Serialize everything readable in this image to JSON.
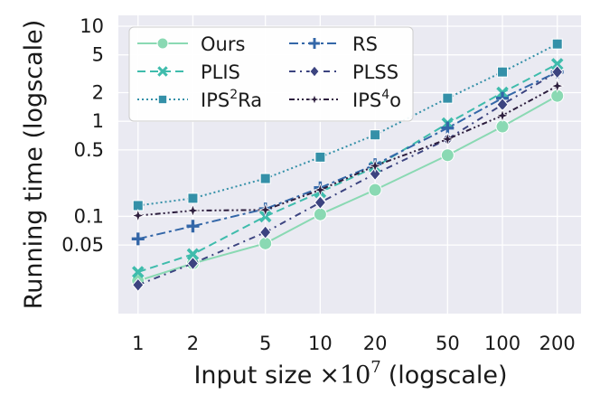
{
  "chart_data": {
    "type": "line",
    "title": "",
    "xlabel_main": "Input size",
    "xlabel_times": "×",
    "xlabel_base": "10",
    "xlabel_exp": "7",
    "xlabel_suffix": "(logscale)",
    "ylabel": "Running time (logscale)",
    "xscale": "log",
    "yscale": "log",
    "xlim": [
      0.78,
      270
    ],
    "ylim": [
      0.0095,
      13
    ],
    "x": [
      1,
      2,
      5,
      10,
      20,
      50,
      100,
      200
    ],
    "xtick_labels": [
      "1",
      "2",
      "5",
      "10",
      "20",
      "50",
      "100",
      "200"
    ],
    "yticks": [
      0.05,
      0.1,
      0.5,
      1,
      2,
      5,
      10
    ],
    "ytick_labels": [
      "0.05",
      "0.1",
      "0.5",
      "1",
      "2",
      "5",
      "10"
    ],
    "grid": true,
    "legend_position": "top-left",
    "series": [
      {
        "name": "Ours",
        "name_base": "Ours",
        "name_sup": "",
        "name_tail": "",
        "color": "#8ad9b3",
        "marker": "circle",
        "dash": "solid",
        "values": [
          0.021,
          0.032,
          0.052,
          0.105,
          0.19,
          0.44,
          0.88,
          1.85
        ]
      },
      {
        "name": "PLIS",
        "name_base": "PLIS",
        "name_sup": "",
        "name_tail": "",
        "color": "#3fbcac",
        "marker": "x",
        "dash": "dashed",
        "values": [
          0.026,
          0.04,
          0.1,
          0.18,
          0.33,
          0.95,
          2.0,
          4.0
        ]
      },
      {
        "name": "IPS²Ra",
        "name_base": "IPS",
        "name_sup": "2",
        "name_tail": "Ra",
        "color": "#3490a8",
        "marker": "square",
        "dash": "dotted",
        "values": [
          0.13,
          0.155,
          0.25,
          0.42,
          0.72,
          1.75,
          3.3,
          6.5
        ]
      },
      {
        "name": "RS",
        "name_base": "RS",
        "name_sup": "",
        "name_tail": "",
        "color": "#3467a8",
        "marker": "plus",
        "dash": "dashdot",
        "values": [
          0.058,
          0.079,
          0.12,
          0.2,
          0.35,
          0.85,
          1.75,
          3.3
        ]
      },
      {
        "name": "PLSS",
        "name_base": "PLSS",
        "name_sup": "",
        "name_tail": "",
        "color": "#3c4480",
        "marker": "diamond",
        "dash": "dashdotloose",
        "values": [
          0.019,
          0.032,
          0.068,
          0.14,
          0.28,
          0.65,
          1.5,
          3.3
        ]
      },
      {
        "name": "IPS⁴o",
        "name_base": "IPS",
        "name_sup": "4",
        "name_tail": "o",
        "color": "#2d1e3e",
        "marker": "star",
        "dash": "dashdotdot",
        "values": [
          0.102,
          0.115,
          0.117,
          0.19,
          0.34,
          0.65,
          1.15,
          2.35
        ]
      }
    ]
  }
}
